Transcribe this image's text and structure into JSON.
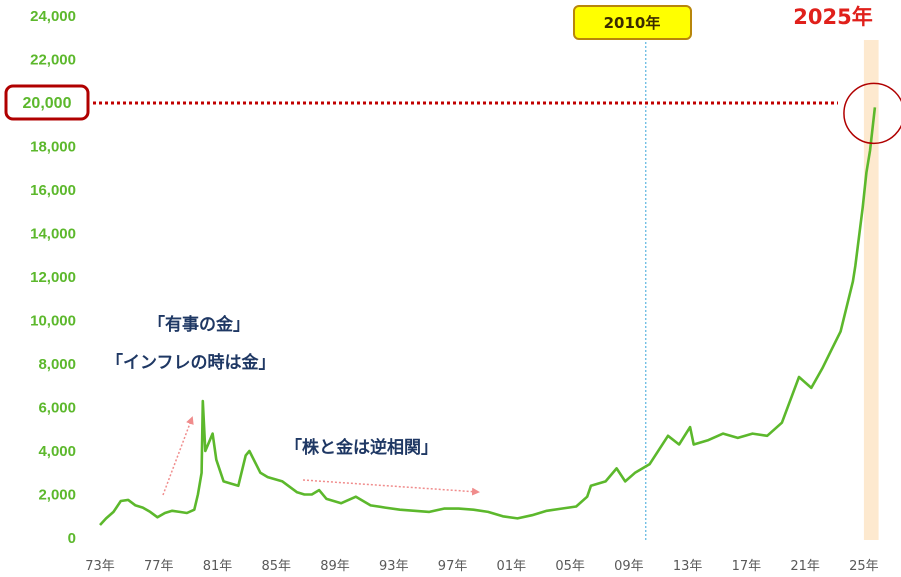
{
  "chart_data": {
    "type": "line",
    "series": [
      {
        "color": "#5cb82c",
        "points": [
          [
            "1973-01",
            600
          ],
          [
            "1973-06",
            900
          ],
          [
            "1973-12",
            1200
          ],
          [
            "1974-06",
            1700
          ],
          [
            "1974-12",
            1750
          ],
          [
            "1975-06",
            1500
          ],
          [
            "1975-12",
            1400
          ],
          [
            "1976-06",
            1200
          ],
          [
            "1976-12",
            950
          ],
          [
            "1977-06",
            1150
          ],
          [
            "1977-12",
            1250
          ],
          [
            "1978-06",
            1200
          ],
          [
            "1978-12",
            1150
          ],
          [
            "1979-06",
            1300
          ],
          [
            "1979-09",
            2000
          ],
          [
            "1979-12",
            3000
          ],
          [
            "1980-01",
            6300
          ],
          [
            "1980-03",
            4000
          ],
          [
            "1980-06",
            4400
          ],
          [
            "1980-09",
            4800
          ],
          [
            "1980-12",
            3600
          ],
          [
            "1981-06",
            2600
          ],
          [
            "1981-12",
            2500
          ],
          [
            "1982-06",
            2400
          ],
          [
            "1982-12",
            3800
          ],
          [
            "1983-03",
            4000
          ],
          [
            "1983-12",
            3000
          ],
          [
            "1984-06",
            2800
          ],
          [
            "1985-06",
            2600
          ],
          [
            "1986-06",
            2100
          ],
          [
            "1986-12",
            2000
          ],
          [
            "1987-06",
            2000
          ],
          [
            "1987-12",
            2200
          ],
          [
            "1988-06",
            1800
          ],
          [
            "1989-06",
            1600
          ],
          [
            "1990-06",
            1900
          ],
          [
            "1991-06",
            1500
          ],
          [
            "1992-06",
            1400
          ],
          [
            "1993-06",
            1300
          ],
          [
            "1994-06",
            1250
          ],
          [
            "1995-06",
            1200
          ],
          [
            "1996-06",
            1350
          ],
          [
            "1997-06",
            1350
          ],
          [
            "1998-06",
            1300
          ],
          [
            "1999-06",
            1200
          ],
          [
            "2000-06",
            1000
          ],
          [
            "2001-06",
            900
          ],
          [
            "2002-06",
            1050
          ],
          [
            "2003-06",
            1250
          ],
          [
            "2004-06",
            1350
          ],
          [
            "2005-06",
            1450
          ],
          [
            "2006-03",
            1900
          ],
          [
            "2006-06",
            2400
          ],
          [
            "2007-06",
            2600
          ],
          [
            "2008-03",
            3200
          ],
          [
            "2008-10",
            2600
          ],
          [
            "2009-06",
            3000
          ],
          [
            "2010-06",
            3400
          ],
          [
            "2011-09",
            4700
          ],
          [
            "2012-06",
            4300
          ],
          [
            "2013-03",
            5100
          ],
          [
            "2013-06",
            4300
          ],
          [
            "2014-06",
            4500
          ],
          [
            "2015-06",
            4800
          ],
          [
            "2016-06",
            4600
          ],
          [
            "2017-06",
            4800
          ],
          [
            "2018-06",
            4700
          ],
          [
            "2019-06",
            5300
          ],
          [
            "2020-08",
            7400
          ],
          [
            "2021-06",
            6900
          ],
          [
            "2022-03",
            7800
          ],
          [
            "2022-10",
            8600
          ],
          [
            "2023-06",
            9500
          ],
          [
            "2024-04",
            11800
          ],
          [
            "2024-06",
            12500
          ],
          [
            "2024-12",
            15200
          ],
          [
            "2025-03",
            16800
          ],
          [
            "2025-06",
            17800
          ],
          [
            "2025-10",
            19800
          ]
        ]
      }
    ],
    "y_ticks": [
      "0",
      "2,000",
      "4,000",
      "6,000",
      "8,000",
      "10,000",
      "12,000",
      "14,000",
      "16,000",
      "18,000",
      "20,000",
      "22,000",
      "24,000"
    ],
    "ylim": [
      0,
      24000
    ],
    "x_ticks": [
      "73年",
      "77年",
      "81年",
      "85年",
      "89年",
      "93年",
      "97年",
      "01年",
      "05年",
      "09年",
      "13年",
      "17年",
      "21年",
      "25年"
    ],
    "xlim": [
      1973,
      2026
    ],
    "highlighted_value": {
      "value": 20000,
      "label": "20,000"
    },
    "vertical_marker": {
      "year": 2010,
      "label": "2010年",
      "color": "#5bb5e0"
    },
    "latest_marker": {
      "year": 2025,
      "label": "2025年",
      "band_color": "#fde9cf"
    },
    "annotations": [
      {
        "text": "「有事の金」"
      },
      {
        "text": "「インフレの時は金」"
      },
      {
        "text": "「株と金は逆相関」"
      }
    ],
    "colors": {
      "line": "#5cb82c",
      "highlight": "#b00000",
      "guide": "#c00000",
      "arrow": "#f08c8c"
    },
    "grid": false
  }
}
